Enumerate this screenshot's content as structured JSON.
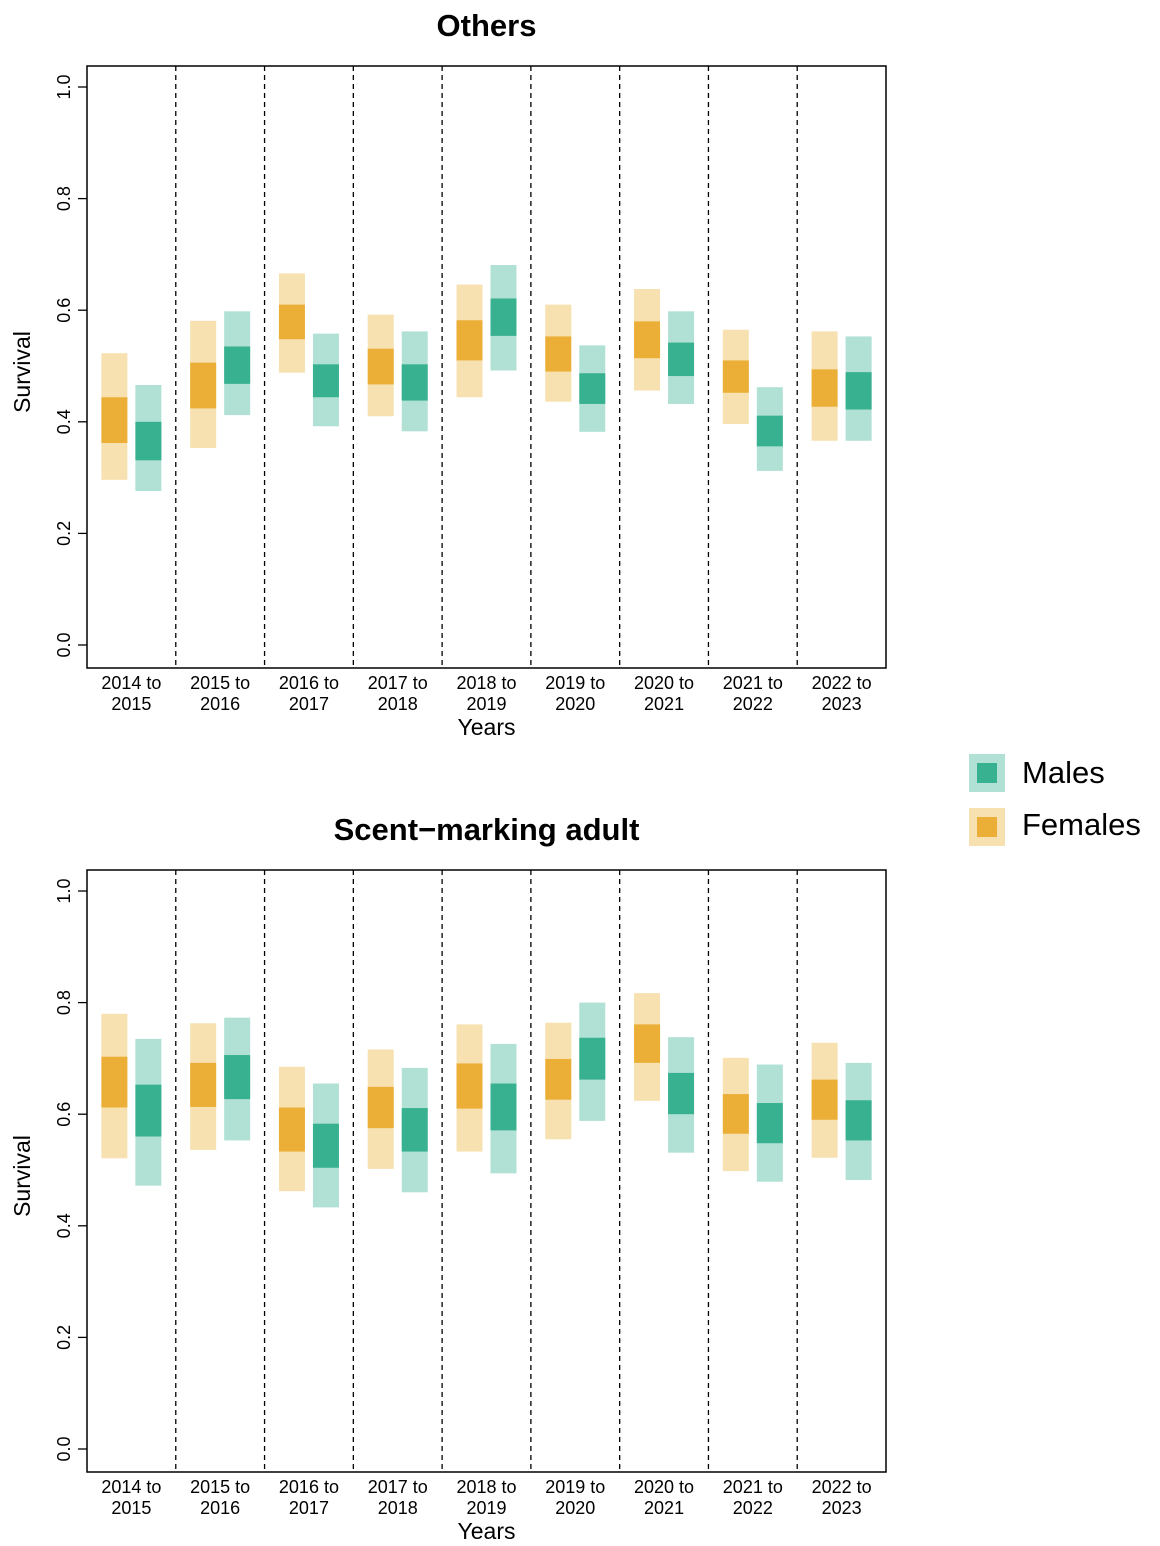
{
  "colors": {
    "females_dark": "#EBAF37",
    "females_light": "#F7E1B0",
    "males_dark": "#38B190",
    "males_light": "#B0E1D4",
    "frame": "#000000",
    "divider": "#000000"
  },
  "legend": {
    "placement": "right",
    "items": [
      {
        "label": "Males",
        "series": "males"
      },
      {
        "label": "Females",
        "series": "females"
      }
    ]
  },
  "chart_data": [
    {
      "type": "bar",
      "title": "Others",
      "xlabel": "Years",
      "ylabel": "Survival",
      "ylim": [
        0,
        1
      ],
      "yticks": [
        "0.0",
        "0.2",
        "0.4",
        "0.6",
        "0.8",
        "1.0"
      ],
      "categories": [
        [
          "2014 to",
          "2015"
        ],
        [
          "2015 to",
          "2016"
        ],
        [
          "2016 to",
          "2017"
        ],
        [
          "2017 to",
          "2018"
        ],
        [
          "2018 to",
          "2019"
        ],
        [
          "2019 to",
          "2020"
        ],
        [
          "2020 to",
          "2021"
        ],
        [
          "2021 to",
          "2022"
        ],
        [
          "2022 to",
          "2023"
        ]
      ],
      "series": [
        {
          "name": "Females",
          "key": "females",
          "outer_low": [
            0.296,
            0.353,
            0.488,
            0.41,
            0.444,
            0.436,
            0.456,
            0.396,
            0.366
          ],
          "outer_high": [
            0.523,
            0.581,
            0.666,
            0.592,
            0.646,
            0.61,
            0.638,
            0.565,
            0.562
          ],
          "inner_low": [
            0.362,
            0.424,
            0.548,
            0.467,
            0.51,
            0.49,
            0.514,
            0.452,
            0.427
          ],
          "inner_high": [
            0.444,
            0.506,
            0.61,
            0.531,
            0.582,
            0.553,
            0.58,
            0.51,
            0.494
          ]
        },
        {
          "name": "Males",
          "key": "males",
          "outer_low": [
            0.276,
            0.412,
            0.392,
            0.383,
            0.492,
            0.382,
            0.432,
            0.312,
            0.366
          ],
          "outer_high": [
            0.466,
            0.598,
            0.558,
            0.562,
            0.681,
            0.537,
            0.598,
            0.462,
            0.553
          ],
          "inner_low": [
            0.331,
            0.468,
            0.444,
            0.438,
            0.554,
            0.432,
            0.482,
            0.356,
            0.422
          ],
          "inner_high": [
            0.4,
            0.535,
            0.503,
            0.503,
            0.621,
            0.487,
            0.542,
            0.411,
            0.489
          ]
        }
      ]
    },
    {
      "type": "bar",
      "title": "Scent−marking adult",
      "xlabel": "Years",
      "ylabel": "Survival",
      "ylim": [
        0,
        1
      ],
      "yticks": [
        "0.0",
        "0.2",
        "0.4",
        "0.6",
        "0.8",
        "1.0"
      ],
      "categories": [
        [
          "2014 to",
          "2015"
        ],
        [
          "2015 to",
          "2016"
        ],
        [
          "2016 to",
          "2017"
        ],
        [
          "2017 to",
          "2018"
        ],
        [
          "2018 to",
          "2019"
        ],
        [
          "2019 to",
          "2020"
        ],
        [
          "2020 to",
          "2021"
        ],
        [
          "2021 to",
          "2022"
        ],
        [
          "2022 to",
          "2023"
        ]
      ],
      "series": [
        {
          "name": "Females",
          "key": "females",
          "outer_low": [
            0.521,
            0.536,
            0.462,
            0.502,
            0.533,
            0.555,
            0.624,
            0.498,
            0.522
          ],
          "outer_high": [
            0.78,
            0.763,
            0.685,
            0.716,
            0.761,
            0.764,
            0.817,
            0.701,
            0.728
          ],
          "inner_low": [
            0.612,
            0.613,
            0.533,
            0.575,
            0.61,
            0.626,
            0.692,
            0.565,
            0.59
          ],
          "inner_high": [
            0.703,
            0.692,
            0.612,
            0.649,
            0.691,
            0.699,
            0.761,
            0.636,
            0.662
          ]
        },
        {
          "name": "Males",
          "key": "males",
          "outer_low": [
            0.472,
            0.553,
            0.433,
            0.46,
            0.494,
            0.588,
            0.531,
            0.479,
            0.482
          ],
          "outer_high": [
            0.735,
            0.773,
            0.655,
            0.683,
            0.726,
            0.8,
            0.738,
            0.689,
            0.692
          ],
          "inner_low": [
            0.56,
            0.627,
            0.504,
            0.533,
            0.571,
            0.662,
            0.6,
            0.548,
            0.553
          ],
          "inner_high": [
            0.653,
            0.706,
            0.583,
            0.611,
            0.655,
            0.737,
            0.674,
            0.62,
            0.625
          ]
        }
      ]
    }
  ]
}
